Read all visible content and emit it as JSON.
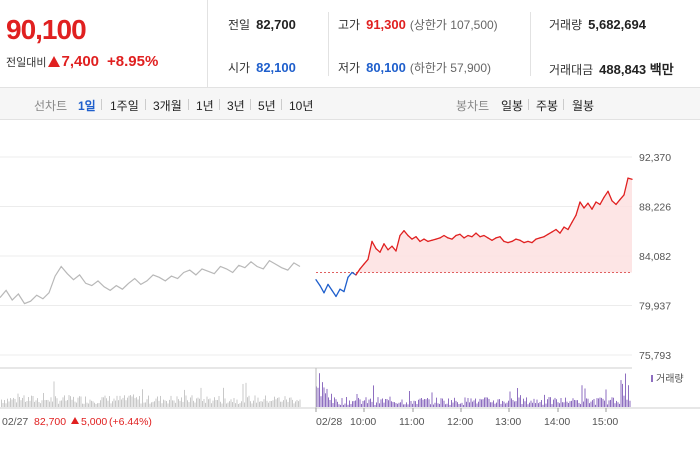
{
  "quote": {
    "current_price": "90,100",
    "change_label": "전일대비",
    "change_value": "7,400",
    "change_pct": "+8.95%"
  },
  "stats": {
    "prev_close": {
      "label": "전일",
      "value": "82,700"
    },
    "open": {
      "label": "시가",
      "value": "82,100"
    },
    "high": {
      "label": "고가",
      "value": "91,300",
      "sub": "(상한가 107,500)"
    },
    "low": {
      "label": "저가",
      "value": "80,100",
      "sub": "(하한가 57,900)"
    },
    "volume": {
      "label": "거래량",
      "value": "5,682,694"
    },
    "amount": {
      "label": "거래대금",
      "value": "488,843 백만"
    }
  },
  "toolbar": {
    "line_label": "선차트",
    "line_periods": [
      "1일",
      "1주일",
      "3개월",
      "1년",
      "3년",
      "5년",
      "10년"
    ],
    "active_period": "1일",
    "candle_label": "봉차트",
    "candle_periods": [
      "일봉",
      "주봉",
      "월봉"
    ]
  },
  "chart_data": {
    "type": "line",
    "y_axis_ticks": [
      "92,370",
      "88,226",
      "84,082",
      "79,937",
      "75,793"
    ],
    "ylim": [
      75793,
      92370
    ],
    "reference_price": 82700,
    "x_ticks": [
      "02/28",
      "10:00",
      "11:00",
      "12:00",
      "13:00",
      "14:00",
      "15:00"
    ],
    "volume_legend": "거래량",
    "prev_day": {
      "date": "02/27",
      "close": "82,700",
      "change": "5,000",
      "change_pct": "(+6.44%)",
      "values": [
        80600,
        81200,
        80400,
        80900,
        80100,
        80300,
        80800,
        80500,
        81000,
        82400,
        83200,
        82600,
        82100,
        82500,
        81800,
        81600,
        82000,
        81500,
        81200,
        81600,
        81300,
        81800,
        82200,
        81700,
        82000,
        82500,
        82300,
        82000,
        82400,
        82200,
        82700,
        82900,
        82500,
        83000,
        82800,
        82600,
        83200,
        83000,
        82700,
        83300,
        83100,
        83600,
        83200,
        83000,
        83700,
        83400,
        83100,
        82900,
        83500,
        83200
      ]
    },
    "today": {
      "values": [
        82100,
        81600,
        81000,
        81700,
        81200,
        80700,
        81300,
        81100,
        82300,
        82700,
        82500,
        83000,
        83400,
        83800,
        85300,
        84700,
        84400,
        85100,
        84600,
        84900,
        84500,
        85800,
        86200,
        85800,
        85500,
        85700,
        85300,
        85500,
        85300,
        85400,
        85500,
        85600,
        85800,
        85600,
        85500,
        85800,
        85900,
        85600,
        85800,
        85700,
        86000,
        85700,
        85800,
        85600,
        85400,
        85600,
        85700,
        85300,
        85200,
        85300,
        85500,
        85400,
        85200,
        85300,
        85200,
        85500,
        85600,
        85700,
        85900,
        86100,
        86300,
        86000,
        86500,
        86300,
        86900,
        87500,
        88600,
        88100,
        88500,
        88000,
        88600,
        88400,
        89000,
        89500,
        88700,
        88400,
        88800,
        89200,
        90600,
        90500
      ]
    }
  }
}
